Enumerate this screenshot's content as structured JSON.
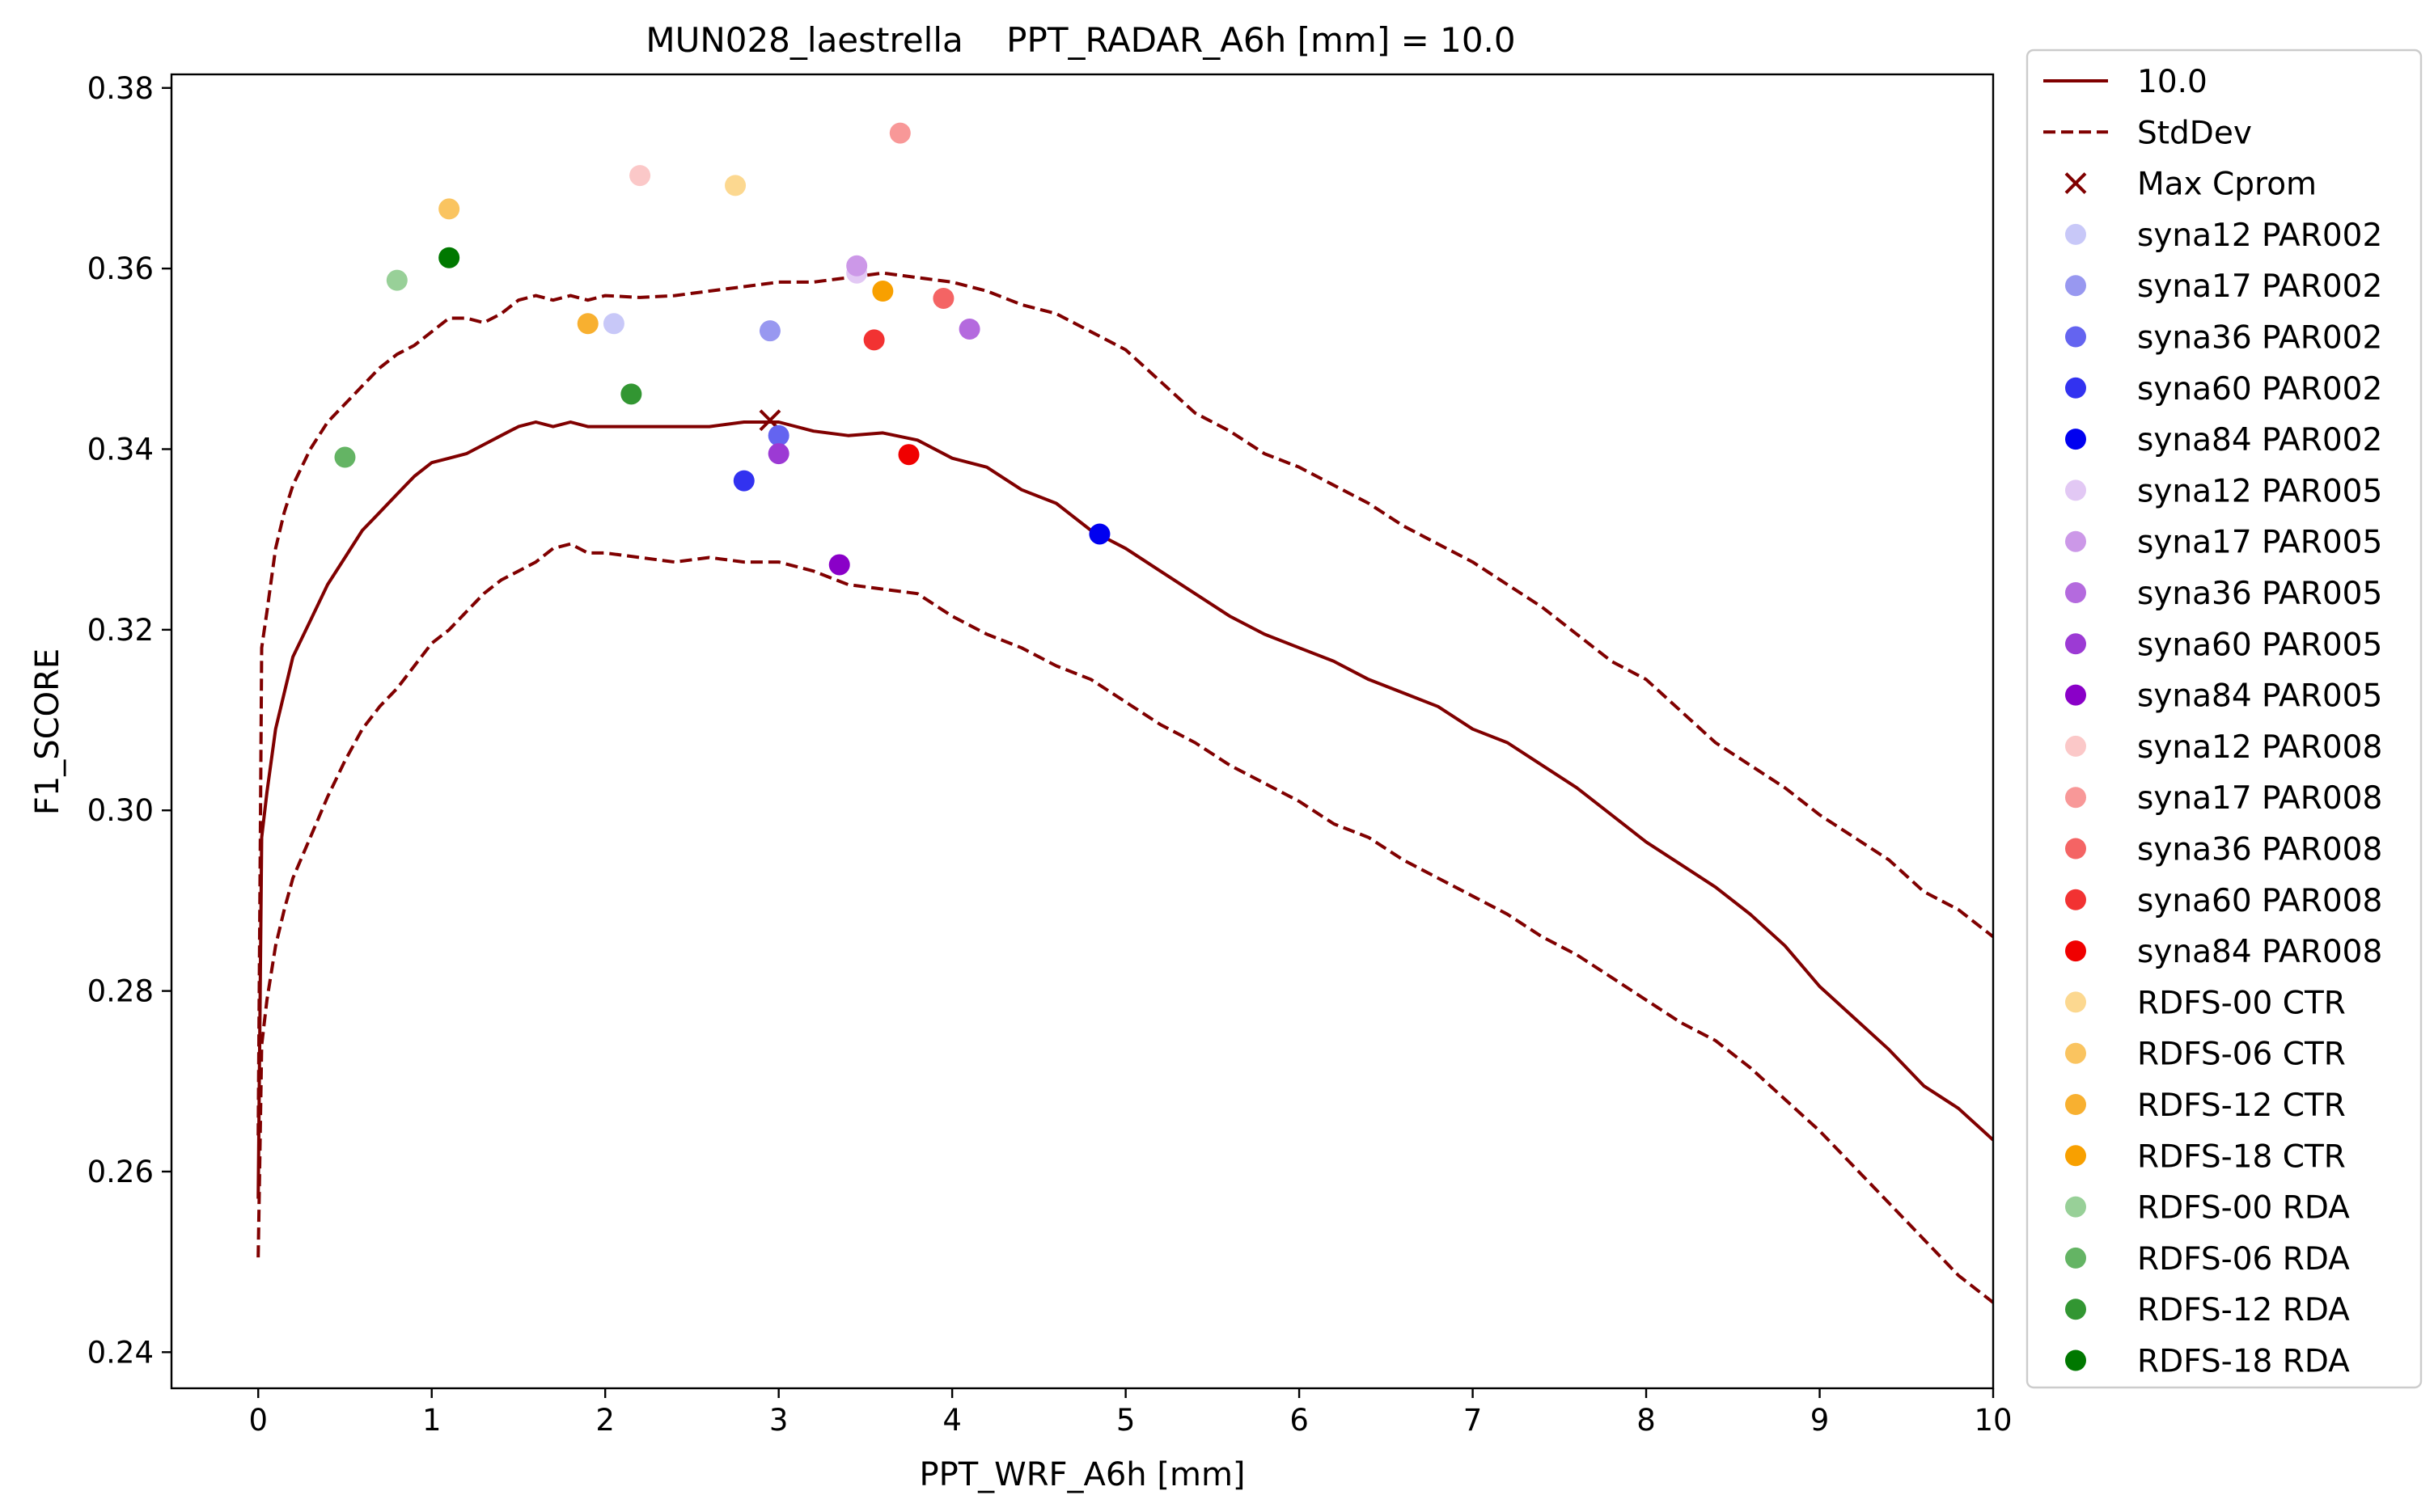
{
  "chart_data": {
    "type": "line",
    "title": "MUN028_laestrella    PPT_RADAR_A6h [mm] = 10.0",
    "xlabel": "PPT_WRF_A6h [mm]",
    "ylabel": "F1_SCORE",
    "xlim": [
      -0.5,
      10.0
    ],
    "ylim": [
      0.236,
      0.3815
    ],
    "xticks": [
      0,
      1,
      2,
      3,
      4,
      5,
      6,
      7,
      8,
      9,
      10
    ],
    "yticks": [
      0.24,
      0.26,
      0.28,
      0.3,
      0.32,
      0.34,
      0.36,
      0.38
    ],
    "xtick_labels": [
      "0",
      "1",
      "2",
      "3",
      "4",
      "5",
      "6",
      "7",
      "8",
      "9",
      "10"
    ],
    "ytick_labels": [
      "0.24",
      "0.26",
      "0.28",
      "0.30",
      "0.32",
      "0.34",
      "0.36",
      "0.38"
    ],
    "grid": false,
    "legend_position": "outside-right",
    "lines": [
      {
        "name": "10.0",
        "style": "solid",
        "color": "#800000",
        "x": [
          0.0,
          0.02,
          0.05,
          0.1,
          0.15,
          0.2,
          0.3,
          0.4,
          0.5,
          0.6,
          0.7,
          0.8,
          0.9,
          1.0,
          1.1,
          1.2,
          1.3,
          1.4,
          1.5,
          1.6,
          1.7,
          1.8,
          1.9,
          2.0,
          2.2,
          2.4,
          2.6,
          2.8,
          3.0,
          3.2,
          3.4,
          3.6,
          3.8,
          4.0,
          4.2,
          4.4,
          4.6,
          4.8,
          5.0,
          5.2,
          5.4,
          5.6,
          5.8,
          6.0,
          6.2,
          6.4,
          6.6,
          6.8,
          7.0,
          7.2,
          7.4,
          7.6,
          7.8,
          8.0,
          8.2,
          8.4,
          8.6,
          8.8,
          9.0,
          9.2,
          9.4,
          9.6,
          9.8,
          10.0
        ],
        "y": [
          0.257,
          0.297,
          0.302,
          0.309,
          0.313,
          0.317,
          0.321,
          0.325,
          0.328,
          0.331,
          0.333,
          0.335,
          0.337,
          0.3385,
          0.339,
          0.3395,
          0.3405,
          0.3415,
          0.3425,
          0.343,
          0.3425,
          0.343,
          0.3425,
          0.3425,
          0.3425,
          0.3425,
          0.3425,
          0.343,
          0.343,
          0.342,
          0.3415,
          0.3418,
          0.341,
          0.339,
          0.338,
          0.3355,
          0.334,
          0.331,
          0.329,
          0.3265,
          0.324,
          0.3215,
          0.3195,
          0.318,
          0.3165,
          0.3145,
          0.313,
          0.3115,
          0.309,
          0.3075,
          0.305,
          0.3025,
          0.2995,
          0.2965,
          0.294,
          0.2915,
          0.2885,
          0.285,
          0.2805,
          0.277,
          0.2735,
          0.2695,
          0.267,
          0.2635
        ]
      },
      {
        "name": "StdDev",
        "style": "dashed",
        "color": "#800000",
        "x": [
          0.0,
          0.02,
          0.05,
          0.1,
          0.15,
          0.2,
          0.3,
          0.4,
          0.5,
          0.6,
          0.7,
          0.8,
          0.9,
          1.0,
          1.1,
          1.2,
          1.3,
          1.4,
          1.5,
          1.6,
          1.7,
          1.8,
          1.9,
          2.0,
          2.2,
          2.4,
          2.6,
          2.8,
          3.0,
          3.2,
          3.4,
          3.6,
          3.8,
          4.0,
          4.2,
          4.4,
          4.6,
          4.8,
          5.0,
          5.2,
          5.4,
          5.6,
          5.8,
          6.0,
          6.2,
          6.4,
          6.6,
          6.8,
          7.0,
          7.2,
          7.4,
          7.6,
          7.8,
          8.0,
          8.2,
          8.4,
          8.6,
          8.8,
          9.0,
          9.2,
          9.4,
          9.6,
          9.8,
          10.0
        ],
        "y": [
          0.264,
          0.318,
          0.322,
          0.329,
          0.333,
          0.336,
          0.34,
          0.343,
          0.345,
          0.347,
          0.349,
          0.3505,
          0.3515,
          0.353,
          0.3545,
          0.3545,
          0.354,
          0.355,
          0.3565,
          0.357,
          0.3565,
          0.357,
          0.3565,
          0.357,
          0.3568,
          0.357,
          0.3575,
          0.358,
          0.3585,
          0.3585,
          0.359,
          0.3595,
          0.359,
          0.3585,
          0.3575,
          0.356,
          0.355,
          0.353,
          0.351,
          0.3475,
          0.344,
          0.342,
          0.3395,
          0.338,
          0.336,
          0.334,
          0.3315,
          0.3295,
          0.3275,
          0.325,
          0.3225,
          0.3195,
          0.3165,
          0.3145,
          0.311,
          0.3075,
          0.305,
          0.3025,
          0.2995,
          0.297,
          0.2945,
          0.291,
          0.289,
          0.286
        ]
      },
      {
        "name": "",
        "style": "dashed",
        "color": "#800000",
        "x": [
          0.0,
          0.02,
          0.05,
          0.1,
          0.15,
          0.2,
          0.3,
          0.4,
          0.5,
          0.6,
          0.7,
          0.8,
          0.9,
          1.0,
          1.1,
          1.2,
          1.3,
          1.4,
          1.5,
          1.6,
          1.7,
          1.8,
          1.9,
          2.0,
          2.2,
          2.4,
          2.6,
          2.8,
          3.0,
          3.2,
          3.4,
          3.6,
          3.8,
          4.0,
          4.2,
          4.4,
          4.6,
          4.8,
          5.0,
          5.2,
          5.4,
          5.6,
          5.8,
          6.0,
          6.2,
          6.4,
          6.6,
          6.8,
          7.0,
          7.2,
          7.4,
          7.6,
          7.8,
          8.0,
          8.2,
          8.4,
          8.6,
          8.8,
          9.0,
          9.2,
          9.4,
          9.6,
          9.8,
          10.0
        ],
        "y": [
          0.2505,
          0.274,
          0.279,
          0.285,
          0.289,
          0.2925,
          0.297,
          0.3015,
          0.3055,
          0.309,
          0.3115,
          0.3135,
          0.316,
          0.3185,
          0.32,
          0.322,
          0.324,
          0.3255,
          0.3265,
          0.3275,
          0.329,
          0.3295,
          0.3285,
          0.3285,
          0.328,
          0.3275,
          0.328,
          0.3275,
          0.3275,
          0.3265,
          0.325,
          0.3245,
          0.324,
          0.3215,
          0.3195,
          0.318,
          0.316,
          0.3145,
          0.312,
          0.3095,
          0.3075,
          0.305,
          0.303,
          0.301,
          0.2985,
          0.297,
          0.2945,
          0.2925,
          0.2905,
          0.2885,
          0.286,
          0.284,
          0.2815,
          0.279,
          0.2765,
          0.2745,
          0.2715,
          0.268,
          0.2645,
          0.2605,
          0.2565,
          0.2525,
          0.2485,
          0.2455
        ]
      }
    ],
    "scatter": [
      {
        "name": "Max Cprom",
        "marker": "x",
        "color": "#800000",
        "x": 2.95,
        "y": 0.3432
      },
      {
        "name": "syna12 PAR002",
        "marker": "o",
        "color": "#c8c8f8",
        "x": 2.05,
        "y": 0.3539
      },
      {
        "name": "syna17 PAR002",
        "marker": "o",
        "color": "#9898f0",
        "x": 2.95,
        "y": 0.3531
      },
      {
        "name": "syna36 PAR002",
        "marker": "o",
        "color": "#6464f0",
        "x": 3.0,
        "y": 0.3415
      },
      {
        "name": "syna60 PAR002",
        "marker": "o",
        "color": "#3232f0",
        "x": 2.8,
        "y": 0.3365
      },
      {
        "name": "syna84 PAR002",
        "marker": "o",
        "color": "#0000f0",
        "x": 4.85,
        "y": 0.3306
      },
      {
        "name": "syna12 PAR005",
        "marker": "o",
        "color": "#e2c8f4",
        "x": 3.45,
        "y": 0.3595
      },
      {
        "name": "syna17 PAR005",
        "marker": "o",
        "color": "#cc98e8",
        "x": 3.45,
        "y": 0.3603
      },
      {
        "name": "syna36 PAR005",
        "marker": "o",
        "color": "#b46ade",
        "x": 4.1,
        "y": 0.3533
      },
      {
        "name": "syna60 PAR005",
        "marker": "o",
        "color": "#9c3ad4",
        "x": 3.0,
        "y": 0.3395
      },
      {
        "name": "syna84 PAR005",
        "marker": "o",
        "color": "#8a00c8",
        "x": 3.35,
        "y": 0.3272
      },
      {
        "name": "syna12 PAR008",
        "marker": "o",
        "color": "#fbc8c8",
        "x": 2.2,
        "y": 0.3703
      },
      {
        "name": "syna17 PAR008",
        "marker": "o",
        "color": "#f89898",
        "x": 3.7,
        "y": 0.375
      },
      {
        "name": "syna36 PAR008",
        "marker": "o",
        "color": "#f46464",
        "x": 3.95,
        "y": 0.3567
      },
      {
        "name": "syna60 PAR008",
        "marker": "o",
        "color": "#f23232",
        "x": 3.55,
        "y": 0.3521
      },
      {
        "name": "syna84 PAR008",
        "marker": "o",
        "color": "#f00000",
        "x": 3.75,
        "y": 0.3394
      },
      {
        "name": "RDFS-00 CTR",
        "marker": "o",
        "color": "#fcd890",
        "x": 2.75,
        "y": 0.3692
      },
      {
        "name": "RDFS-06 CTR",
        "marker": "o",
        "color": "#fac460",
        "x": 1.1,
        "y": 0.3666
      },
      {
        "name": "RDFS-12 CTR",
        "marker": "o",
        "color": "#f8b030",
        "x": 1.9,
        "y": 0.3539
      },
      {
        "name": "RDFS-18 CTR",
        "marker": "o",
        "color": "#f8a000",
        "x": 3.6,
        "y": 0.3575
      },
      {
        "name": "RDFS-00 RDA",
        "marker": "o",
        "color": "#98d098",
        "x": 0.8,
        "y": 0.3587
      },
      {
        "name": "RDFS-06 RDA",
        "marker": "o",
        "color": "#64b464",
        "x": 0.5,
        "y": 0.3391
      },
      {
        "name": "RDFS-12 RDA",
        "marker": "o",
        "color": "#329632",
        "x": 2.15,
        "y": 0.3461
      },
      {
        "name": "RDFS-18 RDA",
        "marker": "o",
        "color": "#007800",
        "x": 1.1,
        "y": 0.3612
      }
    ],
    "legend": [
      {
        "label": "10.0",
        "kind": "line-solid",
        "color": "#800000"
      },
      {
        "label": "StdDev",
        "kind": "line-dashed",
        "color": "#800000"
      },
      {
        "label": "Max Cprom",
        "kind": "x",
        "color": "#800000"
      },
      {
        "label": "syna12 PAR002",
        "kind": "dot",
        "color": "#c8c8f8"
      },
      {
        "label": "syna17 PAR002",
        "kind": "dot",
        "color": "#9898f0"
      },
      {
        "label": "syna36 PAR002",
        "kind": "dot",
        "color": "#6464f0"
      },
      {
        "label": "syna60 PAR002",
        "kind": "dot",
        "color": "#3232f0"
      },
      {
        "label": "syna84 PAR002",
        "kind": "dot",
        "color": "#0000f0"
      },
      {
        "label": "syna12 PAR005",
        "kind": "dot",
        "color": "#e2c8f4"
      },
      {
        "label": "syna17 PAR005",
        "kind": "dot",
        "color": "#cc98e8"
      },
      {
        "label": "syna36 PAR005",
        "kind": "dot",
        "color": "#b46ade"
      },
      {
        "label": "syna60 PAR005",
        "kind": "dot",
        "color": "#9c3ad4"
      },
      {
        "label": "syna84 PAR005",
        "kind": "dot",
        "color": "#8a00c8"
      },
      {
        "label": "syna12 PAR008",
        "kind": "dot",
        "color": "#fbc8c8"
      },
      {
        "label": "syna17 PAR008",
        "kind": "dot",
        "color": "#f89898"
      },
      {
        "label": "syna36 PAR008",
        "kind": "dot",
        "color": "#f46464"
      },
      {
        "label": "syna60 PAR008",
        "kind": "dot",
        "color": "#f23232"
      },
      {
        "label": "syna84 PAR008",
        "kind": "dot",
        "color": "#f00000"
      },
      {
        "label": "RDFS-00 CTR",
        "kind": "dot",
        "color": "#fcd890"
      },
      {
        "label": "RDFS-06 CTR",
        "kind": "dot",
        "color": "#fac460"
      },
      {
        "label": "RDFS-12 CTR",
        "kind": "dot",
        "color": "#f8b030"
      },
      {
        "label": "RDFS-18 CTR",
        "kind": "dot",
        "color": "#f8a000"
      },
      {
        "label": "RDFS-00 RDA",
        "kind": "dot",
        "color": "#98d098"
      },
      {
        "label": "RDFS-06 RDA",
        "kind": "dot",
        "color": "#64b464"
      },
      {
        "label": "RDFS-12 RDA",
        "kind": "dot",
        "color": "#329632"
      },
      {
        "label": "RDFS-18 RDA",
        "kind": "dot",
        "color": "#007800"
      }
    ]
  }
}
